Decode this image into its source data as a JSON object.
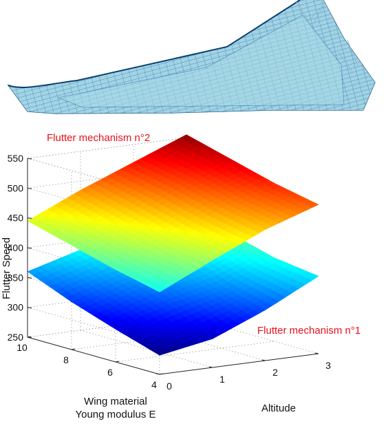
{
  "figure": {
    "annotations": {
      "mechanism_2": "Flutter mechanism n°2",
      "mechanism_1": "Flutter mechanism n°1"
    },
    "annotation_color": "#e8101a",
    "wing_colors": {
      "fill": "#a9dbe7",
      "mesh": "#1f6fae",
      "edge": "#0d4f86"
    }
  },
  "chart_data": {
    "type": "surface",
    "title": "",
    "zlabel": "Flutter Speed",
    "xlabel": "Altitude",
    "ylabel_lines": [
      "Wing material",
      "Young modulus E"
    ],
    "x_axis": {
      "range": [
        0,
        3
      ],
      "ticks": [
        0,
        1,
        2,
        3
      ]
    },
    "y_axis": {
      "range": [
        4,
        10
      ],
      "ticks": [
        4,
        6,
        8,
        10
      ]
    },
    "z_axis": {
      "range": [
        250,
        550
      ],
      "ticks": [
        250,
        300,
        350,
        400,
        450,
        500,
        550
      ]
    },
    "grid": true,
    "colormap": "jet",
    "series": [
      {
        "name": "Flutter mechanism n°1",
        "altitude": [
          0,
          1,
          2,
          3
        ],
        "young_modulus": [
          4,
          6,
          8,
          10
        ],
        "flutter_speed": [
          [
            282,
            298,
            335,
            380
          ],
          [
            305,
            335,
            355,
            390
          ],
          [
            330,
            358,
            385,
            410
          ],
          [
            360,
            385,
            400,
            420
          ]
        ]
      },
      {
        "name": "Flutter mechanism n°2",
        "altitude": [
          0,
          1,
          2,
          3
        ],
        "young_modulus": [
          4,
          6,
          8,
          10
        ],
        "flutter_speed": [
          [
            388,
            430,
            470,
            500
          ],
          [
            405,
            445,
            485,
            515
          ],
          [
            425,
            465,
            505,
            535
          ],
          [
            445,
            485,
            520,
            555
          ]
        ]
      }
    ]
  }
}
